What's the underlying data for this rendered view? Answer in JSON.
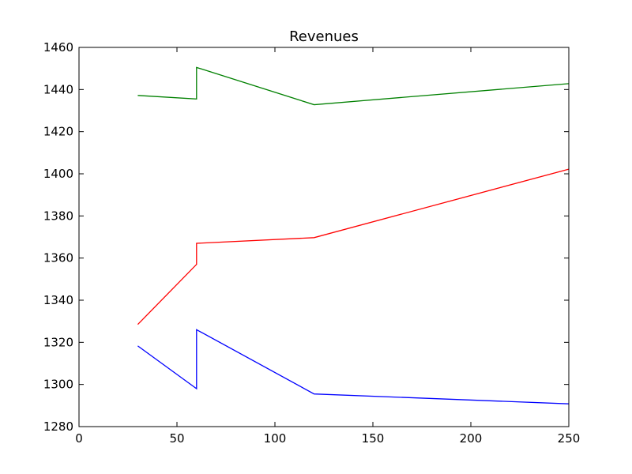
{
  "chart_data": {
    "type": "line",
    "title": "Revenues",
    "xlabel": "",
    "ylabel": "",
    "xlim": [
      0,
      250
    ],
    "ylim": [
      1280,
      1460
    ],
    "xticks": [
      0,
      50,
      100,
      150,
      200,
      250
    ],
    "yticks": [
      1280,
      1300,
      1320,
      1340,
      1360,
      1380,
      1400,
      1420,
      1440,
      1460
    ],
    "grid": false,
    "legend": "none",
    "series": [
      {
        "color": "#008000",
        "points": [
          [
            30,
            1437.2
          ],
          [
            60,
            1435.5
          ],
          [
            60,
            1450.5
          ],
          [
            120,
            1432.8
          ],
          [
            250,
            1442.8
          ]
        ]
      },
      {
        "color": "#ff0000",
        "points": [
          [
            30,
            1328.5
          ],
          [
            60,
            1357.0
          ],
          [
            60,
            1367.0
          ],
          [
            120,
            1369.7
          ],
          [
            250,
            1402.2
          ]
        ]
      },
      {
        "color": "#0000ff",
        "points": [
          [
            30,
            1318.3
          ],
          [
            60,
            1298.0
          ],
          [
            60,
            1326.0
          ],
          [
            120,
            1295.5
          ],
          [
            250,
            1290.8
          ]
        ]
      }
    ]
  }
}
